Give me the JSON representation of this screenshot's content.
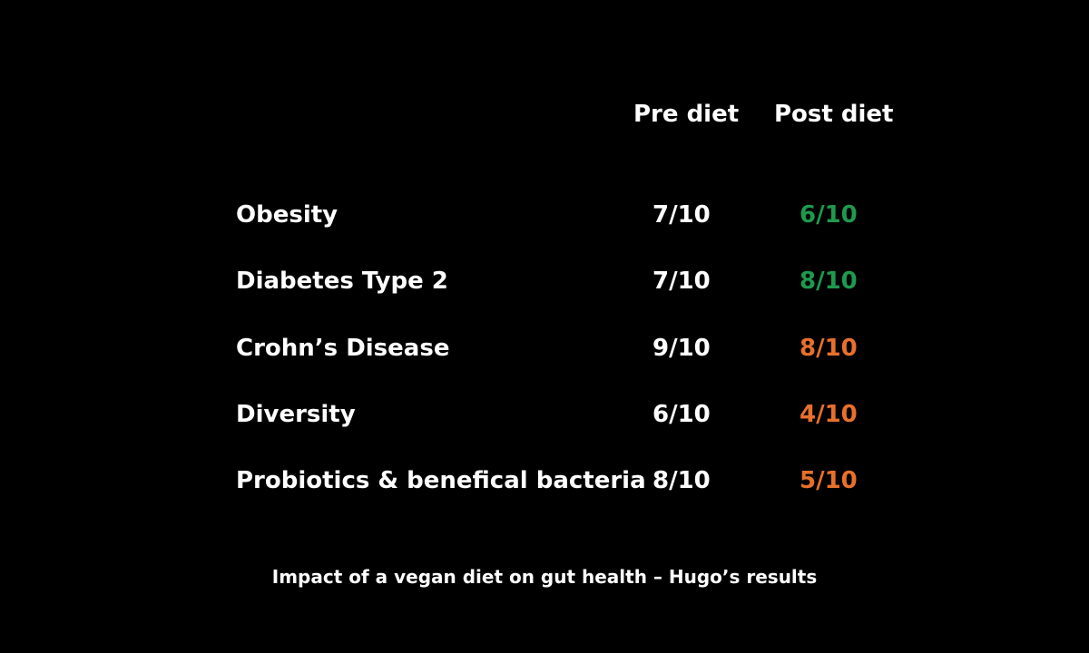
{
  "table": {
    "columns": {
      "pre": "Pre diet",
      "post": "Post diet"
    },
    "rows": [
      {
        "label": "Obesity",
        "pre": "7/10",
        "post": "6/10",
        "post_color": "#1e9a4f"
      },
      {
        "label": "Diabetes Type 2",
        "pre": "7/10",
        "post": "8/10",
        "post_color": "#1e9a4f"
      },
      {
        "label": "Crohn’s Disease",
        "pre": "9/10",
        "post": "8/10",
        "post_color": "#e8702a"
      },
      {
        "label": "Diversity",
        "pre": "6/10",
        "post": "4/10",
        "post_color": "#e8702a"
      },
      {
        "label": "Probiotics & benefical bacteria",
        "pre": "8/10",
        "post": "5/10",
        "post_color": "#e8702a"
      }
    ]
  },
  "caption": "Impact of a vegan diet on gut health – Hugo’s results",
  "colors": {
    "background": "#000000",
    "text": "#ffffff",
    "improved": "#1e9a4f",
    "worsened": "#e8702a"
  }
}
